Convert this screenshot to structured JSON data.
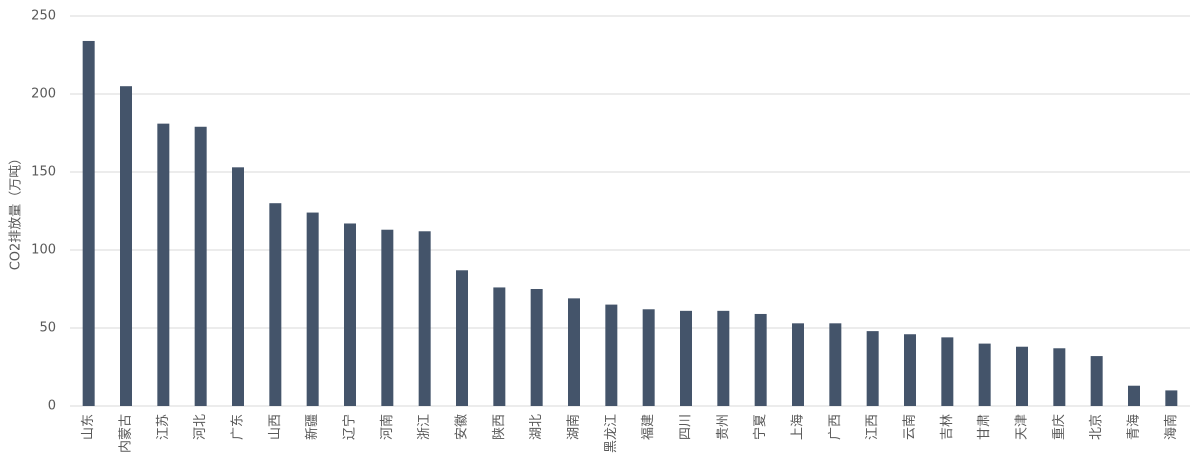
{
  "chart_data": {
    "type": "bar",
    "ylabel": "CO2排放量（万吨）",
    "categories": [
      "山东",
      "内蒙古",
      "江苏",
      "河北",
      "广东",
      "山西",
      "新疆",
      "辽宁",
      "河南",
      "浙江",
      "安徽",
      "陕西",
      "湖北",
      "湖南",
      "黑龙江",
      "福建",
      "四川",
      "贵州",
      "宁夏",
      "上海",
      "广西",
      "江西",
      "云南",
      "吉林",
      "甘肃",
      "天津",
      "重庆",
      "北京",
      "青海",
      "海南"
    ],
    "values": [
      234,
      205,
      181,
      179,
      153,
      130,
      124,
      117,
      113,
      112,
      87,
      76,
      75,
      69,
      65,
      62,
      61,
      61,
      59,
      53,
      53,
      48,
      46,
      44,
      40,
      38,
      37,
      32,
      13,
      10
    ],
    "color": "#44546a",
    "ylim": [
      0,
      250
    ],
    "yticks": [
      0,
      50,
      100,
      150,
      200,
      250
    ],
    "grid": true
  }
}
